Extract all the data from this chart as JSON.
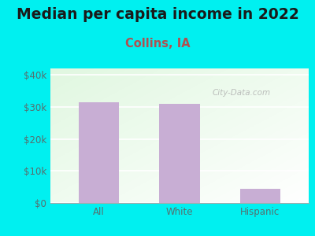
{
  "title": "Median per capita income in 2022",
  "subtitle": "Collins, IA",
  "categories": [
    "All",
    "White",
    "Hispanic"
  ],
  "values": [
    31500,
    31000,
    4500
  ],
  "bar_color": "#c8aed4",
  "title_fontsize": 13.5,
  "subtitle_fontsize": 10.5,
  "title_color": "#1a1a1a",
  "subtitle_color": "#b05050",
  "tick_color": "#557070",
  "bg_outer": "#00f0f0",
  "ylim": [
    0,
    42000
  ],
  "yticks": [
    0,
    10000,
    20000,
    30000,
    40000
  ],
  "ytick_labels": [
    "$0",
    "$10k",
    "$20k",
    "$30k",
    "$40k"
  ],
  "watermark": "City-Data.com"
}
